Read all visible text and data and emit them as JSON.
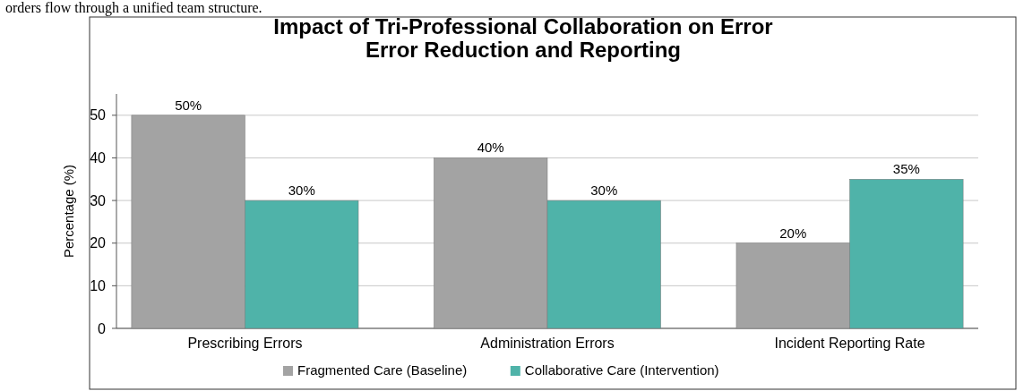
{
  "chart_data": {
    "type": "bar",
    "title": "Impact of Tri-Professional Collaboration on Error\nError Reduction and Reporting",
    "ylabel": "Percentage (%)",
    "annotations": [
      "orders flow through a unified team structure."
    ],
    "categories": [
      "Prescribing Errors",
      "Administration Errors",
      "Incident Reporting Rate"
    ],
    "series": [
      {
        "name": "Fragmented Care (Baseline)",
        "color": "#a3a3a3",
        "values": [
          50,
          40,
          20
        ],
        "value_labels": [
          "50%",
          "40%",
          "20%"
        ]
      },
      {
        "name": "Collaborative Care (Intervention)",
        "color": "#4fb3a9",
        "values": [
          30,
          30,
          35
        ],
        "value_labels": [
          "30%",
          "30%",
          "35%"
        ]
      }
    ],
    "ylim": [
      0,
      55
    ],
    "yticks": [
      0,
      10,
      20,
      30,
      40,
      50
    ],
    "grid": "y",
    "legend": "bottom"
  }
}
